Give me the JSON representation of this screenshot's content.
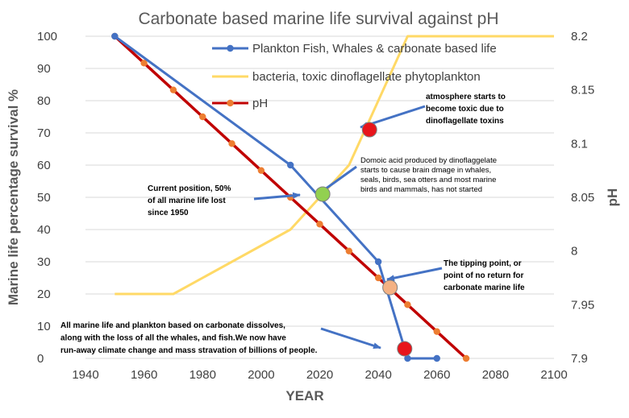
{
  "chart_data": {
    "type": "line",
    "title": "Carbonate based marine life survival against pH",
    "xlabel": "YEAR",
    "ylabel": "Marine life  percentage survival   %",
    "y2label": "pH",
    "xlim": [
      1940,
      2100
    ],
    "ylim": [
      0,
      100
    ],
    "y2lim": [
      7.9,
      8.2
    ],
    "x_ticks": [
      "1940",
      "1960",
      "1980",
      "2000",
      "2020",
      "2040",
      "2060",
      "2080",
      "2100"
    ],
    "y_ticks": [
      "0",
      "10",
      "20",
      "30",
      "40",
      "50",
      "60",
      "70",
      "80",
      "90",
      "100"
    ],
    "y2_ticks": [
      "7.9",
      "7.95",
      "8",
      "8.05",
      "8.1",
      "8.15",
      "8.2"
    ],
    "grid": "horizontal",
    "legend_position": "top-right",
    "series": [
      {
        "name": "Plankton Fish, Whales & carbonate based life",
        "color": "#4472c4",
        "axis": "left",
        "x": [
          1950,
          2010,
          2040,
          2050,
          2060
        ],
        "y": [
          100,
          60,
          30,
          0,
          0
        ]
      },
      {
        "name": "bacteria, toxic dinoflagellate phytoplankton",
        "color": "#ffd966",
        "axis": "left",
        "x": [
          1950,
          1970,
          2010,
          2030,
          2050,
          2100
        ],
        "y": [
          20,
          20,
          40,
          60,
          100,
          100
        ]
      },
      {
        "name": "pH",
        "color": "#c00000",
        "marker_color": "#ed7d31",
        "axis": "right",
        "x": [
          1950,
          1960,
          1970,
          1980,
          1990,
          2000,
          2010,
          2020,
          2030,
          2040,
          2050,
          2060,
          2070
        ],
        "y": [
          8.2,
          8.175,
          8.15,
          8.125,
          8.1,
          8.075,
          8.05,
          8.025,
          8,
          7.975,
          7.95,
          7.925,
          7.9
        ]
      }
    ],
    "highlight_markers": [
      {
        "x": 2037,
        "y": 71,
        "color": "#e8151b"
      },
      {
        "x": 2021,
        "y": 51,
        "color": "#92d050"
      },
      {
        "x": 2044,
        "y": 22,
        "color": "#f4b183"
      },
      {
        "x": 2049,
        "y": 3,
        "color": "#e8151b"
      }
    ],
    "annotations": [
      {
        "lines": [
          "atmosphere starts to",
          "become toxic due to",
          "dinoflagellate toxins"
        ],
        "style": "bold"
      },
      {
        "lines": [
          "Domoic acid produced by dinoflaggelate",
          "starts to cause brain dmage in  whales,",
          "seals, birds, sea otters and most marine",
          "birds and mammals, has not started"
        ],
        "style": "normal"
      },
      {
        "lines": [
          "Current position, 50%",
          "of all marine life lost",
          "since 1950"
        ],
        "style": "bold"
      },
      {
        "lines": [
          "The tipping point, or",
          "point of no return for",
          "carbonate marine life"
        ],
        "style": "bold"
      },
      {
        "lines": [
          "All marine life and plankton based on carbonate dissolves,",
          "along with the loss of all the whales, and fish.We now have",
          "run-away climate change and mass stravation of billions of people."
        ],
        "style": "bold"
      }
    ]
  }
}
